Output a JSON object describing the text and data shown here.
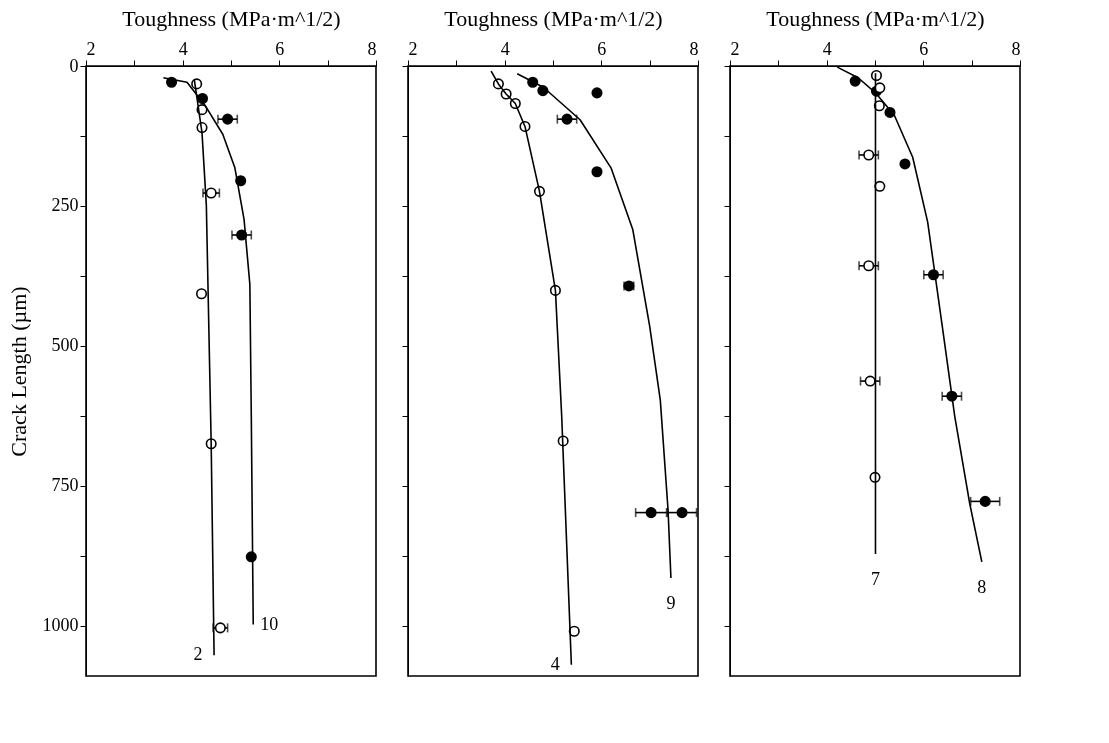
{
  "chart_data": [
    {
      "type": "scatter",
      "xlabel": "Toughness (MPa·m^1/2)",
      "ylabel": "Crack Length (µm)",
      "xlim": [
        2,
        8
      ],
      "ylim": [
        1090,
        0
      ],
      "xticks": [
        2,
        {
          "value": 3,
          "label": null
        },
        4,
        {
          "value": 5,
          "label": null
        },
        6,
        {
          "value": 7,
          "label": null
        },
        8
      ],
      "yticks": [
        0,
        {
          "value": 125,
          "label": null
        },
        250,
        {
          "value": 375,
          "label": null
        },
        500,
        {
          "value": 625,
          "label": null
        },
        750,
        {
          "value": 875,
          "label": null
        },
        1000
      ],
      "grid": false,
      "legend": false,
      "marker": "circle",
      "series": [
        {
          "type": "scatter",
          "color": "#000000",
          "x": [
            3.77,
            4.41,
            4.93,
            5.2,
            5.22,
            5.42
          ],
          "values": [
            29,
            58,
            95,
            205,
            302,
            877
          ],
          "xerrors": [
            null,
            null,
            0.2,
            null,
            0.2,
            null
          ]
        },
        {
          "type": "scatter",
          "color": "#ffffff",
          "x": [
            4.29,
            4.4,
            4.4,
            4.59,
            4.39,
            4.59,
            4.78
          ],
          "values": [
            32,
            78,
            110,
            227,
            407,
            675,
            1004
          ],
          "xerrors": [
            null,
            null,
            null,
            0.17,
            null,
            null,
            0.15
          ]
        },
        {
          "type": "line",
          "name": "10",
          "marker": "none",
          "color": "#000000",
          "x": [
            3.6,
            4.09,
            4.46,
            4.83,
            5.08,
            5.27,
            5.39,
            5.42,
            5.46
          ],
          "values": [
            21,
            29,
            70,
            122,
            182,
            274,
            390,
            626,
            998
          ]
        },
        {
          "type": "line",
          "name": "2",
          "marker": "none",
          "color": "#000000",
          "x": [
            4.24,
            4.4,
            4.49,
            4.59,
            4.65
          ],
          "values": [
            24,
            119,
            249,
            675,
            1053
          ]
        }
      ]
    },
    {
      "type": "scatter",
      "xlabel": "Toughness (MPa·m^1/2)",
      "xlim": [
        2,
        8
      ],
      "ylim": [
        1090,
        0
      ],
      "tick_labels": "x",
      "xticks": [
        2,
        {
          "value": 3,
          "label": null
        },
        4,
        {
          "value": 5,
          "label": null
        },
        6,
        {
          "value": 7,
          "label": null
        },
        8
      ],
      "yticks": [
        0,
        {
          "value": 125,
          "label": null
        },
        250,
        {
          "value": 375,
          "label": null
        },
        500,
        {
          "value": 625,
          "label": null
        },
        750,
        {
          "value": 875,
          "label": null
        },
        1000
      ],
      "legend": false,
      "marker": "circle",
      "series": [
        {
          "type": "scatter",
          "color": "#000000",
          "x": [
            4.58,
            4.79,
            5.91,
            5.29,
            5.91,
            6.57,
            7.03,
            7.67
          ],
          "values": [
            29,
            44,
            48,
            95,
            189,
            393,
            798,
            798
          ],
          "xerrors": [
            null,
            null,
            null,
            0.2,
            null,
            0.1,
            0.32,
            0.3
          ]
        },
        {
          "type": "scatter",
          "color": "#ffffff",
          "x": [
            3.87,
            4.03,
            4.22,
            4.42,
            4.72,
            5.05,
            5.21,
            5.44
          ],
          "values": [
            32,
            50,
            67,
            108,
            224,
            401,
            670,
            1010
          ]
        },
        {
          "type": "line",
          "name": "9",
          "marker": "none",
          "color": "#000000",
          "x": [
            4.26,
            4.8,
            5.56,
            6.2,
            6.65,
            7.0,
            7.22,
            7.38,
            7.44
          ],
          "values": [
            14,
            38,
            96,
            182,
            292,
            465,
            597,
            793,
            915
          ]
        },
        {
          "type": "line",
          "name": "4",
          "marker": "none",
          "color": "#000000",
          "x": [
            3.72,
            3.87,
            4.03,
            4.22,
            4.42,
            4.72,
            5.05,
            5.18,
            5.38
          ],
          "values": [
            9,
            32,
            50,
            67,
            108,
            224,
            401,
            626,
            1070
          ]
        }
      ]
    },
    {
      "type": "scatter",
      "xlabel": "Toughness (MPa·m^1/2)",
      "xlim": [
        2,
        8
      ],
      "ylim": [
        1090,
        0
      ],
      "tick_labels": "x",
      "xticks": [
        2,
        {
          "value": 3,
          "label": null
        },
        4,
        {
          "value": 5,
          "label": null
        },
        6,
        {
          "value": 7,
          "label": null
        },
        8
      ],
      "yticks": [
        0,
        {
          "value": 125,
          "label": null
        },
        250,
        {
          "value": 375,
          "label": null
        },
        500,
        {
          "value": 625,
          "label": null
        },
        750,
        {
          "value": 875,
          "label": null
        },
        1000
      ],
      "grid": false,
      "legend": false,
      "marker": "circle",
      "series": [
        {
          "type": "scatter",
          "color": "#000000",
          "x": [
            4.59,
            5.03,
            5.31,
            5.62,
            6.21,
            6.59,
            7.28
          ],
          "values": [
            27,
            45,
            83,
            175,
            373,
            590,
            778
          ],
          "xerrors": [
            null,
            null,
            null,
            null,
            0.2,
            0.2,
            0.3
          ]
        },
        {
          "type": "scatter",
          "color": "#ffffff",
          "x": [
            5.03,
            5.1,
            5.09,
            4.87,
            5.1,
            4.87,
            4.9,
            5.0
          ],
          "values": [
            17,
            39,
            71,
            159,
            215,
            357,
            563,
            735
          ],
          "xerrors": [
            null,
            null,
            null,
            0.2,
            null,
            0.2,
            0.2,
            null
          ]
        },
        {
          "type": "line",
          "name": "8",
          "marker": "none",
          "color": "#000000",
          "x": [
            4.22,
            4.65,
            5.0,
            5.4,
            5.78,
            6.09,
            6.4,
            6.65,
            6.96,
            7.21
          ],
          "values": [
            2,
            21,
            47,
            88,
            163,
            279,
            470,
            626,
            782,
            886
          ]
        },
        {
          "type": "line",
          "name": "7",
          "marker": "none",
          "color": "#000000",
          "x": [
            5.01,
            5.01
          ],
          "values": [
            13,
            872
          ]
        }
      ]
    }
  ]
}
